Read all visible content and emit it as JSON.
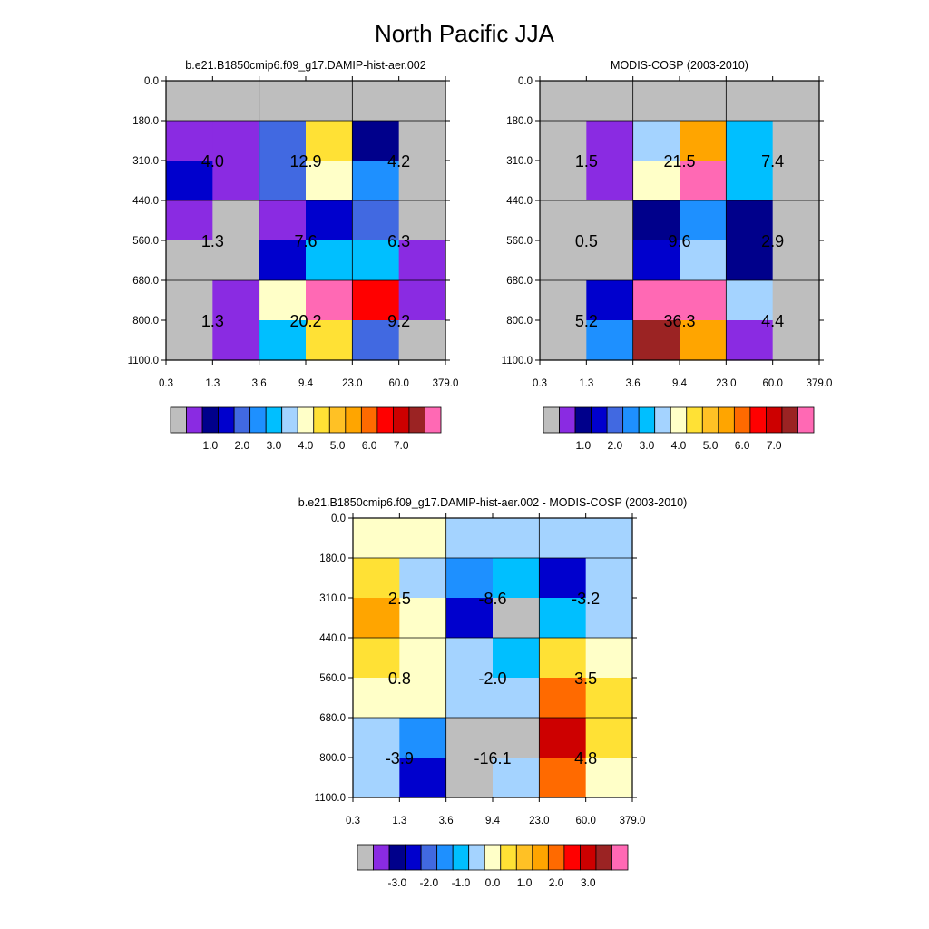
{
  "title": "North Pacific JJA",
  "chart_data": [
    {
      "type": "heatmap",
      "title": "b.e21.B1850cmip6.f09_g17.DAMIP-hist-aer.002",
      "x_ticks": [
        "0.3",
        "1.3",
        "3.6",
        "9.4",
        "23.0",
        "60.0",
        "379.0"
      ],
      "y_ticks": [
        "0.0",
        "180.0",
        "310.0",
        "440.0",
        "560.0",
        "680.0",
        "800.0",
        "1100.0"
      ],
      "cells": [
        [
          "#bebebe",
          "#bebebe",
          "#bebebe",
          "#bebebe",
          "#bebebe",
          "#bebebe"
        ],
        [
          "#8a2be2",
          "#8a2be2",
          "#4169e1",
          "#ffe135",
          "#00008b",
          "#bebebe"
        ],
        [
          "#0000cd",
          "#8a2be2",
          "#4169e1",
          "#ffffc8",
          "#1e90ff",
          "#bebebe"
        ],
        [
          "#8a2be2",
          "#bebebe",
          "#8a2be2",
          "#0000cd",
          "#4169e1",
          "#bebebe"
        ],
        [
          "#bebebe",
          "#bebebe",
          "#0000cd",
          "#00bfff",
          "#00bfff",
          "#8a2be2"
        ],
        [
          "#bebebe",
          "#8a2be2",
          "#ffffc8",
          "#ff69b4",
          "#ff0000",
          "#8a2be2"
        ],
        [
          "#bebebe",
          "#8a2be2",
          "#00bfff",
          "#ffe135",
          "#4169e1",
          "#bebebe"
        ]
      ],
      "block_values": [
        [
          "4.0",
          "12.9",
          "4.2"
        ],
        [
          "1.3",
          "7.6",
          "6.3"
        ],
        [
          "1.3",
          "20.2",
          "9.2"
        ]
      ],
      "colorbar": {
        "colors": [
          "#bebebe",
          "#8a2be2",
          "#00008b",
          "#0000cd",
          "#4169e1",
          "#1e90ff",
          "#00bfff",
          "#a4d3ff",
          "#ffffc8",
          "#ffe135",
          "#ffc125",
          "#ffa500",
          "#ff6a00",
          "#ff0000",
          "#cd0000",
          "#9b2323",
          "#ff69b4"
        ],
        "labels": [
          "1.0",
          "2.0",
          "3.0",
          "4.0",
          "5.0",
          "6.0",
          "7.0"
        ]
      }
    },
    {
      "type": "heatmap",
      "title": "MODIS-COSP (2003-2010)",
      "x_ticks": [
        "0.3",
        "1.3",
        "3.6",
        "9.4",
        "23.0",
        "60.0",
        "379.0"
      ],
      "y_ticks": [
        "0.0",
        "180.0",
        "310.0",
        "440.0",
        "560.0",
        "680.0",
        "800.0",
        "1100.0"
      ],
      "cells": [
        [
          "#bebebe",
          "#bebebe",
          "#bebebe",
          "#bebebe",
          "#bebebe",
          "#bebebe"
        ],
        [
          "#bebebe",
          "#8a2be2",
          "#a4d3ff",
          "#ffa500",
          "#00bfff",
          "#bebebe"
        ],
        [
          "#bebebe",
          "#8a2be2",
          "#ffffc8",
          "#ff69b4",
          "#00bfff",
          "#bebebe"
        ],
        [
          "#bebebe",
          "#bebebe",
          "#00008b",
          "#1e90ff",
          "#00008b",
          "#bebebe"
        ],
        [
          "#bebebe",
          "#bebebe",
          "#0000cd",
          "#a4d3ff",
          "#00008b",
          "#bebebe"
        ],
        [
          "#bebebe",
          "#0000cd",
          "#ff69b4",
          "#ff69b4",
          "#a4d3ff",
          "#bebebe"
        ],
        [
          "#bebebe",
          "#1e90ff",
          "#9b2323",
          "#ffa500",
          "#8a2be2",
          "#bebebe"
        ]
      ],
      "block_values": [
        [
          "1.5",
          "21.5",
          "7.4"
        ],
        [
          "0.5",
          "9.6",
          "2.9"
        ],
        [
          "5.2",
          "36.3",
          "4.4"
        ]
      ],
      "colorbar": {
        "colors": [
          "#bebebe",
          "#8a2be2",
          "#00008b",
          "#0000cd",
          "#4169e1",
          "#1e90ff",
          "#00bfff",
          "#a4d3ff",
          "#ffffc8",
          "#ffe135",
          "#ffc125",
          "#ffa500",
          "#ff6a00",
          "#ff0000",
          "#cd0000",
          "#9b2323",
          "#ff69b4"
        ],
        "labels": [
          "1.0",
          "2.0",
          "3.0",
          "4.0",
          "5.0",
          "6.0",
          "7.0"
        ]
      }
    },
    {
      "type": "heatmap",
      "title": "b.e21.B1850cmip6.f09_g17.DAMIP-hist-aer.002 - MODIS-COSP (2003-2010)",
      "x_ticks": [
        "0.3",
        "1.3",
        "3.6",
        "9.4",
        "23.0",
        "60.0",
        "379.0"
      ],
      "y_ticks": [
        "0.0",
        "180.0",
        "310.0",
        "440.0",
        "560.0",
        "680.0",
        "800.0",
        "1100.0"
      ],
      "cells": [
        [
          "#ffffc8",
          "#ffffc8",
          "#a4d3ff",
          "#a4d3ff",
          "#a4d3ff",
          "#a4d3ff"
        ],
        [
          "#ffe135",
          "#a4d3ff",
          "#1e90ff",
          "#00bfff",
          "#0000cd",
          "#a4d3ff"
        ],
        [
          "#ffa500",
          "#ffffc8",
          "#0000cd",
          "#bebebe",
          "#00bfff",
          "#a4d3ff"
        ],
        [
          "#ffe135",
          "#ffffc8",
          "#a4d3ff",
          "#00bfff",
          "#ffe135",
          "#ffffc8"
        ],
        [
          "#ffffc8",
          "#ffffc8",
          "#a4d3ff",
          "#a4d3ff",
          "#ff6a00",
          "#ffe135"
        ],
        [
          "#a4d3ff",
          "#1e90ff",
          "#bebebe",
          "#bebebe",
          "#cd0000",
          "#ffe135"
        ],
        [
          "#a4d3ff",
          "#0000cd",
          "#bebebe",
          "#a4d3ff",
          "#ff6a00",
          "#ffffc8"
        ]
      ],
      "block_values": [
        [
          "2.5",
          "-8.6",
          "-3.2"
        ],
        [
          "0.8",
          "-2.0",
          "3.5"
        ],
        [
          "-3.9",
          "-16.1",
          "4.8"
        ]
      ],
      "colorbar": {
        "colors": [
          "#bebebe",
          "#8a2be2",
          "#00008b",
          "#0000cd",
          "#4169e1",
          "#1e90ff",
          "#00bfff",
          "#a4d3ff",
          "#ffffc8",
          "#ffe135",
          "#ffc125",
          "#ffa500",
          "#ff6a00",
          "#ff0000",
          "#cd0000",
          "#9b2323",
          "#ff69b4"
        ],
        "labels": [
          "-3.0",
          "-2.0",
          "-1.0",
          "0.0",
          "1.0",
          "2.0",
          "3.0"
        ]
      }
    }
  ]
}
